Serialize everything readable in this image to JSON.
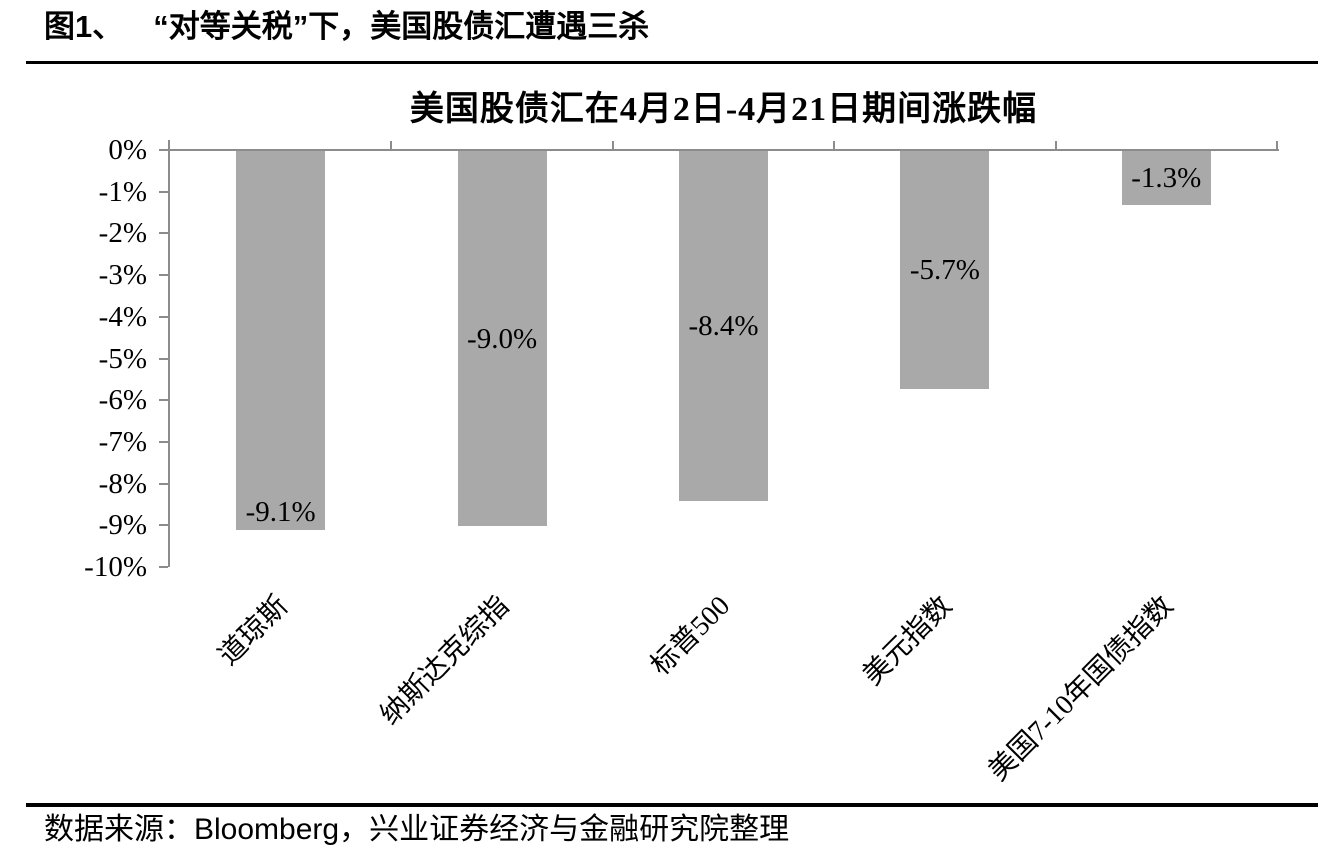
{
  "figure": {
    "label": "图1、",
    "title": "“对等关税”下，美国股债汇遭遇三杀"
  },
  "source": {
    "label": "数据来源：",
    "text": "Bloomberg，兴业证券经济与金融研究院整理"
  },
  "chart_data": {
    "type": "bar",
    "title": "美国股债汇在4月2日-4月21日期间涨跌幅",
    "categories": [
      "道琼斯",
      "纳斯达克综指",
      "标普500",
      "美元指数",
      "美国7-10年国债指数"
    ],
    "values": [
      -9.1,
      -9.0,
      -8.4,
      -5.7,
      -1.3
    ],
    "data_labels": [
      "-9.1%",
      "-9.0%",
      "-8.4%",
      "-5.7%",
      "-1.3%"
    ],
    "data_label_placement": [
      "inside-end",
      "center",
      "center",
      "center",
      "center"
    ],
    "y_axis": {
      "min": -10,
      "max": 0,
      "tick_labels": [
        "0%",
        "-1%",
        "-2%",
        "-3%",
        "-4%",
        "-5%",
        "-6%",
        "-7%",
        "-8%",
        "-9%",
        "-10%"
      ]
    },
    "x_tick_rotation_deg": 45,
    "grid": false,
    "legend": false,
    "colors": {
      "bar": "#a9a9a9",
      "axis": "#8c8c8c",
      "text": "#000000"
    }
  }
}
